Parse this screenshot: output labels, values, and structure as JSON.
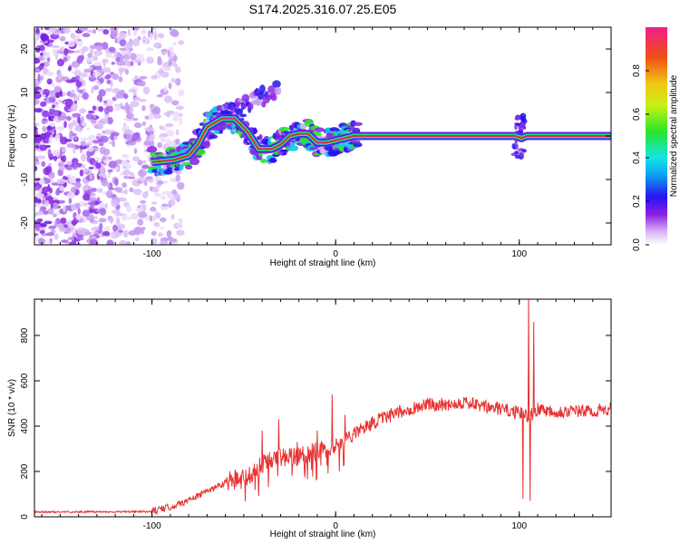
{
  "title": "S174.2025.316.07.25.E05",
  "colors": {
    "snr_line": "#e83232",
    "spectral_line": "#e8264e",
    "axis": "#000000"
  },
  "chart_data": [
    {
      "type": "heatmap",
      "name": "spectrogram",
      "xlabel": "Height of straight line (km)",
      "ylabel": "Frequency (Hz)",
      "xlim": [
        -164,
        150
      ],
      "ylim": [
        -25,
        25
      ],
      "xticks": [
        -100,
        0,
        100
      ],
      "yticks": [
        -20,
        -10,
        0,
        10,
        20
      ],
      "colorbar": {
        "label": "Normalized spectral amplitude",
        "range": [
          0,
          1
        ],
        "ticks": [
          "0.0",
          "0.2",
          "0.4",
          "0.6",
          "0.8"
        ]
      },
      "dominant_frequency_trace": [
        {
          "x": -100,
          "y": -6
        },
        {
          "x": -88,
          "y": -5.5
        },
        {
          "x": -80,
          "y": -4.5
        },
        {
          "x": -75,
          "y": -2
        },
        {
          "x": -70,
          "y": 2
        },
        {
          "x": -62,
          "y": 4
        },
        {
          "x": -55,
          "y": 4
        },
        {
          "x": -48,
          "y": 1
        },
        {
          "x": -42,
          "y": -3
        },
        {
          "x": -35,
          "y": -3
        },
        {
          "x": -30,
          "y": -2
        },
        {
          "x": -25,
          "y": 0
        },
        {
          "x": -20,
          "y": 0.5
        },
        {
          "x": -15,
          "y": 0.5
        },
        {
          "x": -10,
          "y": -1.5
        },
        {
          "x": -5,
          "y": -1.5
        },
        {
          "x": 0,
          "y": -1
        },
        {
          "x": 10,
          "y": 0
        },
        {
          "x": 98,
          "y": 0
        },
        {
          "x": 101,
          "y": -0.5
        },
        {
          "x": 104,
          "y": 0
        },
        {
          "x": 150,
          "y": 0
        }
      ],
      "secondary_trace": [
        {
          "x": -70,
          "y": -1
        },
        {
          "x": -60,
          "y": 5
        },
        {
          "x": -50,
          "y": 7
        },
        {
          "x": -40,
          "y": 9
        },
        {
          "x": -32,
          "y": 11
        }
      ]
    },
    {
      "type": "line",
      "name": "snr",
      "xlabel": "Height of straight line (km)",
      "ylabel": "SNR (10 * v/v)",
      "xlim": [
        -164,
        150
      ],
      "ylim": [
        0,
        960
      ],
      "xticks": [
        -100,
        0,
        100
      ],
      "yticks": [
        0,
        200,
        400,
        600,
        800
      ],
      "envelope_x": [
        -164,
        -100,
        -90,
        -80,
        -70,
        -60,
        -50,
        -40,
        -30,
        -20,
        -10,
        0,
        10,
        20,
        30,
        40,
        50,
        60,
        70,
        80,
        90,
        95,
        100,
        105,
        110,
        120,
        130,
        140,
        150
      ],
      "envelope_y": [
        20,
        22,
        40,
        70,
        110,
        150,
        160,
        220,
        250,
        260,
        280,
        310,
        360,
        410,
        440,
        470,
        490,
        490,
        500,
        480,
        470,
        460,
        450,
        440,
        470,
        460,
        460,
        460,
        470
      ],
      "spikes": [
        {
          "x": -55,
          "y": 120
        },
        {
          "x": -47,
          "y": 220
        },
        {
          "x": -40,
          "y": 380
        },
        {
          "x": -31,
          "y": 430
        },
        {
          "x": -21,
          "y": 330
        },
        {
          "x": -10,
          "y": 380
        },
        {
          "x": -2,
          "y": 540
        },
        {
          "x": 5,
          "y": 450
        },
        {
          "x": 105,
          "y": 960
        },
        {
          "x": 108,
          "y": 860
        },
        {
          "x": 102,
          "y": 80
        },
        {
          "x": 106,
          "y": 70
        }
      ]
    }
  ]
}
